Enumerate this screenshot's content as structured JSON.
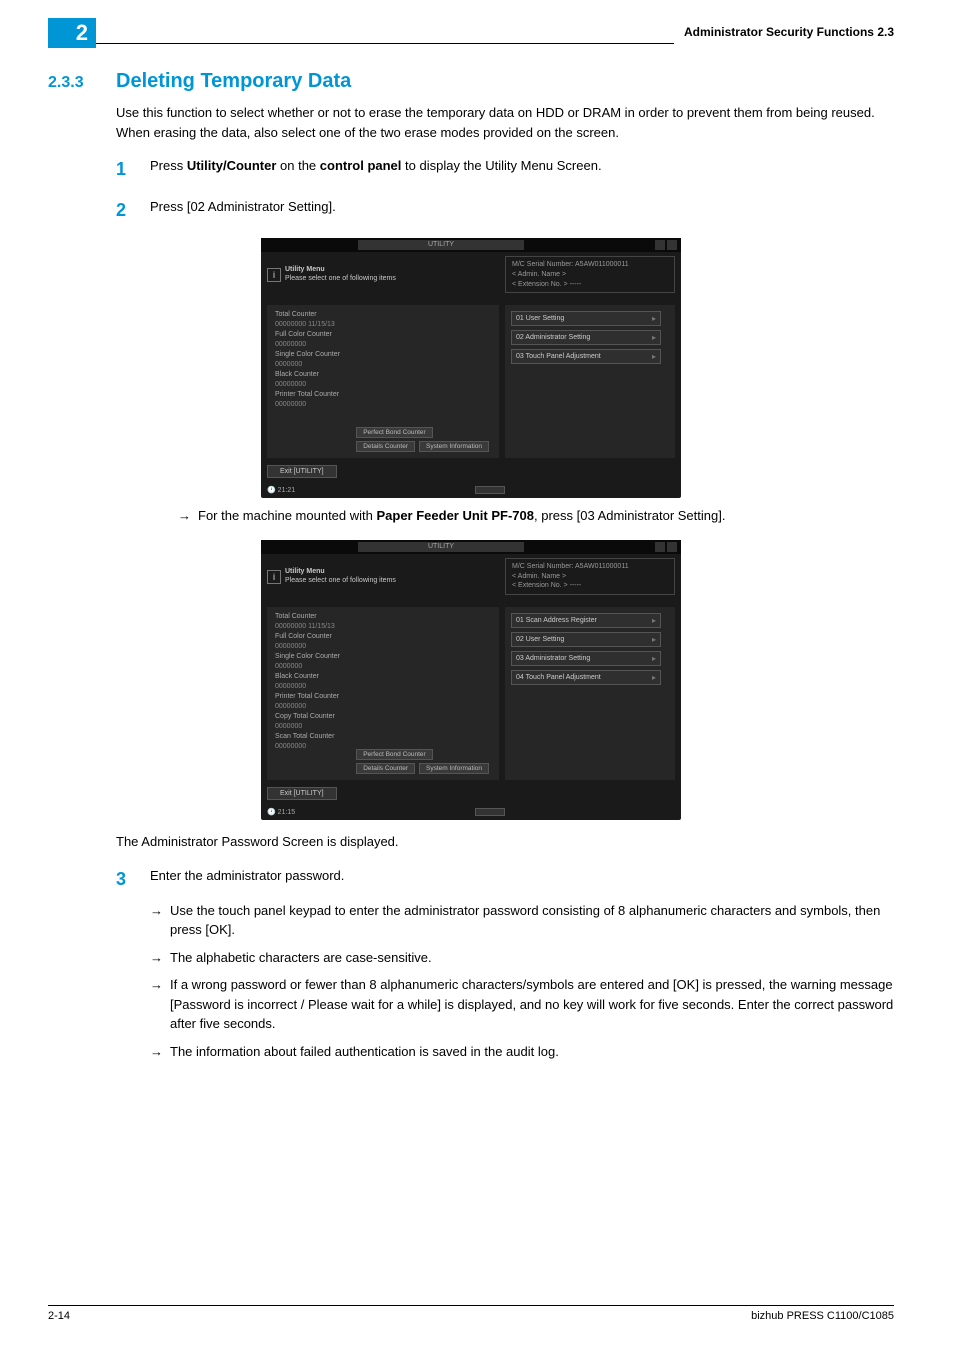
{
  "header": {
    "page_box_number": "2",
    "right_text": "Administrator Security Functions     2.3"
  },
  "section": {
    "number": "2.3.3",
    "title": "Deleting Temporary Data",
    "intro": "Use this function to select whether or not to erase the temporary data on HDD or DRAM in order to prevent them from being reused. When erasing the data, also select one of the two erase modes provided on the screen."
  },
  "steps": {
    "s1_num": "1",
    "s1_a": "Press ",
    "s1_b": "Utility/Counter",
    "s1_c": " on the ",
    "s1_d": "control panel",
    "s1_e": " to display the Utility Menu Screen.",
    "s2_num": "2",
    "s2_text": "Press [02 Administrator Setting].",
    "arrow_note_a": "For the machine mounted with ",
    "arrow_note_b": "Paper Feeder Unit PF-708",
    "arrow_note_c": ", press [03 Administrator Setting].",
    "after_shots": "The Administrator Password Screen is displayed.",
    "s3_num": "3",
    "s3_text": "Enter the administrator password.",
    "s3_b1": "Use the touch panel keypad to enter the administrator password consisting of 8 alphanumeric characters and symbols, then press [OK].",
    "s3_b2": "The alphabetic characters are case-sensitive.",
    "s3_b3": "If a wrong password or fewer than 8 alphanumeric characters/symbols are entered and [OK] is pressed, the warning message [Password is incorrect / Please wait for a while] is displayed, and no key will work for five seconds. Enter the correct password after five seconds.",
    "s3_b4": "The information about failed authentication is saved in the audit log."
  },
  "screenshot": {
    "titlebar": "UTILITY",
    "hdr_title": "Utility Menu",
    "hdr_sub": "Please select one of following items",
    "serial": "M/C Serial Number: A5AW011000011",
    "admin": "< Admin. Name >",
    "ext": "< Extension No. >  -----",
    "counters_a": [
      {
        "label": "Total Counter",
        "val": "00000000   11/15/13"
      },
      {
        "label": "Full Color Counter",
        "val": "00000000"
      },
      {
        "label": "Single Color Counter",
        "val": "0000000"
      },
      {
        "label": "Black Counter",
        "val": "00000000"
      },
      {
        "label": "Printer Total Counter",
        "val": "00000000"
      }
    ],
    "counters_b": [
      {
        "label": "Total Counter",
        "val": "00000000   11/15/13"
      },
      {
        "label": "Full Color Counter",
        "val": "00000000"
      },
      {
        "label": "Single Color Counter",
        "val": "0000000"
      },
      {
        "label": "Black Counter",
        "val": "00000000"
      },
      {
        "label": "Printer Total Counter",
        "val": "00000000"
      },
      {
        "label": "Copy Total Counter",
        "val": "0000000"
      },
      {
        "label": "Scan Total Counter",
        "val": "00000000"
      }
    ],
    "menu_a": [
      "01 User Setting",
      "02 Administrator Setting",
      "03 Touch Panel Adjustment"
    ],
    "menu_b": [
      "01 Scan Address Register",
      "02 User Setting",
      "03 Administrator Setting",
      "04 Touch Panel Adjustment"
    ],
    "btn_perfect": "Perfect Bond Counter",
    "btn_details": "Details Counter",
    "btn_system": "System Information",
    "exit": "Exit [UTILITY]",
    "time_a": "21:21",
    "time_b": "21:15"
  },
  "footer": {
    "left": "2-14",
    "right": "bizhub PRESS C1100/C1085"
  }
}
